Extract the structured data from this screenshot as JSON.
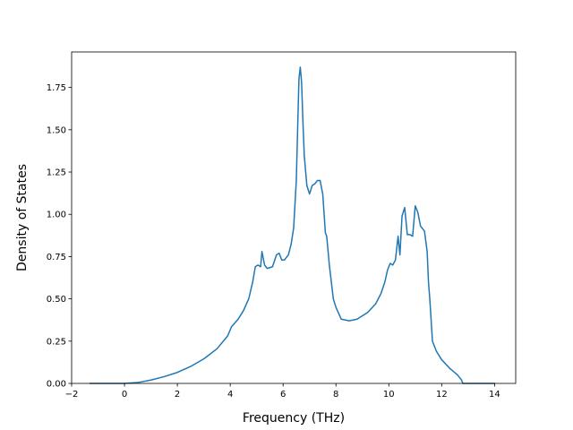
{
  "chart_data": {
    "type": "line",
    "title": "",
    "xlabel": "Frequency (THz)",
    "ylabel": "Density of States",
    "xlim": [
      -2.0,
      14.8
    ],
    "ylim": [
      0.0,
      1.96
    ],
    "grid": false,
    "xticks": [
      -2,
      0,
      2,
      4,
      6,
      8,
      10,
      12,
      14
    ],
    "xtick_labels": [
      "−2",
      "0",
      "2",
      "4",
      "6",
      "8",
      "10",
      "12",
      "14"
    ],
    "yticks": [
      0.0,
      0.25,
      0.5,
      0.75,
      1.0,
      1.25,
      1.5,
      1.75
    ],
    "ytick_labels": [
      "0.00",
      "0.25",
      "0.50",
      "0.75",
      "1.00",
      "1.25",
      "1.50",
      "1.75"
    ],
    "series": [
      {
        "color": "#1f77b4",
        "x": [
          -1.3,
          -0.5,
          0.0,
          0.5,
          1.0,
          1.5,
          2.0,
          2.5,
          3.0,
          3.5,
          3.9,
          4.05,
          4.3,
          4.5,
          4.7,
          4.85,
          4.95,
          5.05,
          5.15,
          5.2,
          5.3,
          5.4,
          5.6,
          5.75,
          5.85,
          5.95,
          6.05,
          6.2,
          6.3,
          6.4,
          6.5,
          6.6,
          6.65,
          6.7,
          6.75,
          6.8,
          6.9,
          7.0,
          7.1,
          7.2,
          7.3,
          7.4,
          7.5,
          7.6,
          7.65,
          7.75,
          7.9,
          8.0,
          8.2,
          8.5,
          8.8,
          9.2,
          9.5,
          9.7,
          9.85,
          9.95,
          10.05,
          10.15,
          10.25,
          10.35,
          10.42,
          10.5,
          10.6,
          10.7,
          10.8,
          10.9,
          11.0,
          11.1,
          11.2,
          11.35,
          11.45,
          11.5,
          11.55,
          11.65,
          11.8,
          12.0,
          12.3,
          12.6,
          12.75,
          12.8,
          13.5,
          14.0
        ],
        "y": [
          0.0,
          0.0,
          0.0,
          0.005,
          0.02,
          0.04,
          0.065,
          0.1,
          0.145,
          0.205,
          0.28,
          0.335,
          0.38,
          0.43,
          0.5,
          0.6,
          0.69,
          0.7,
          0.69,
          0.78,
          0.7,
          0.68,
          0.69,
          0.76,
          0.77,
          0.73,
          0.73,
          0.76,
          0.82,
          0.92,
          1.2,
          1.8,
          1.87,
          1.78,
          1.55,
          1.35,
          1.17,
          1.12,
          1.17,
          1.18,
          1.2,
          1.2,
          1.12,
          0.89,
          0.87,
          0.7,
          0.5,
          0.45,
          0.38,
          0.37,
          0.38,
          0.42,
          0.47,
          0.53,
          0.6,
          0.67,
          0.71,
          0.7,
          0.73,
          0.87,
          0.76,
          0.99,
          1.04,
          0.88,
          0.88,
          0.87,
          1.05,
          1.01,
          0.93,
          0.9,
          0.78,
          0.6,
          0.5,
          0.25,
          0.19,
          0.14,
          0.09,
          0.05,
          0.02,
          0.0,
          0.0,
          0.0
        ]
      }
    ]
  }
}
